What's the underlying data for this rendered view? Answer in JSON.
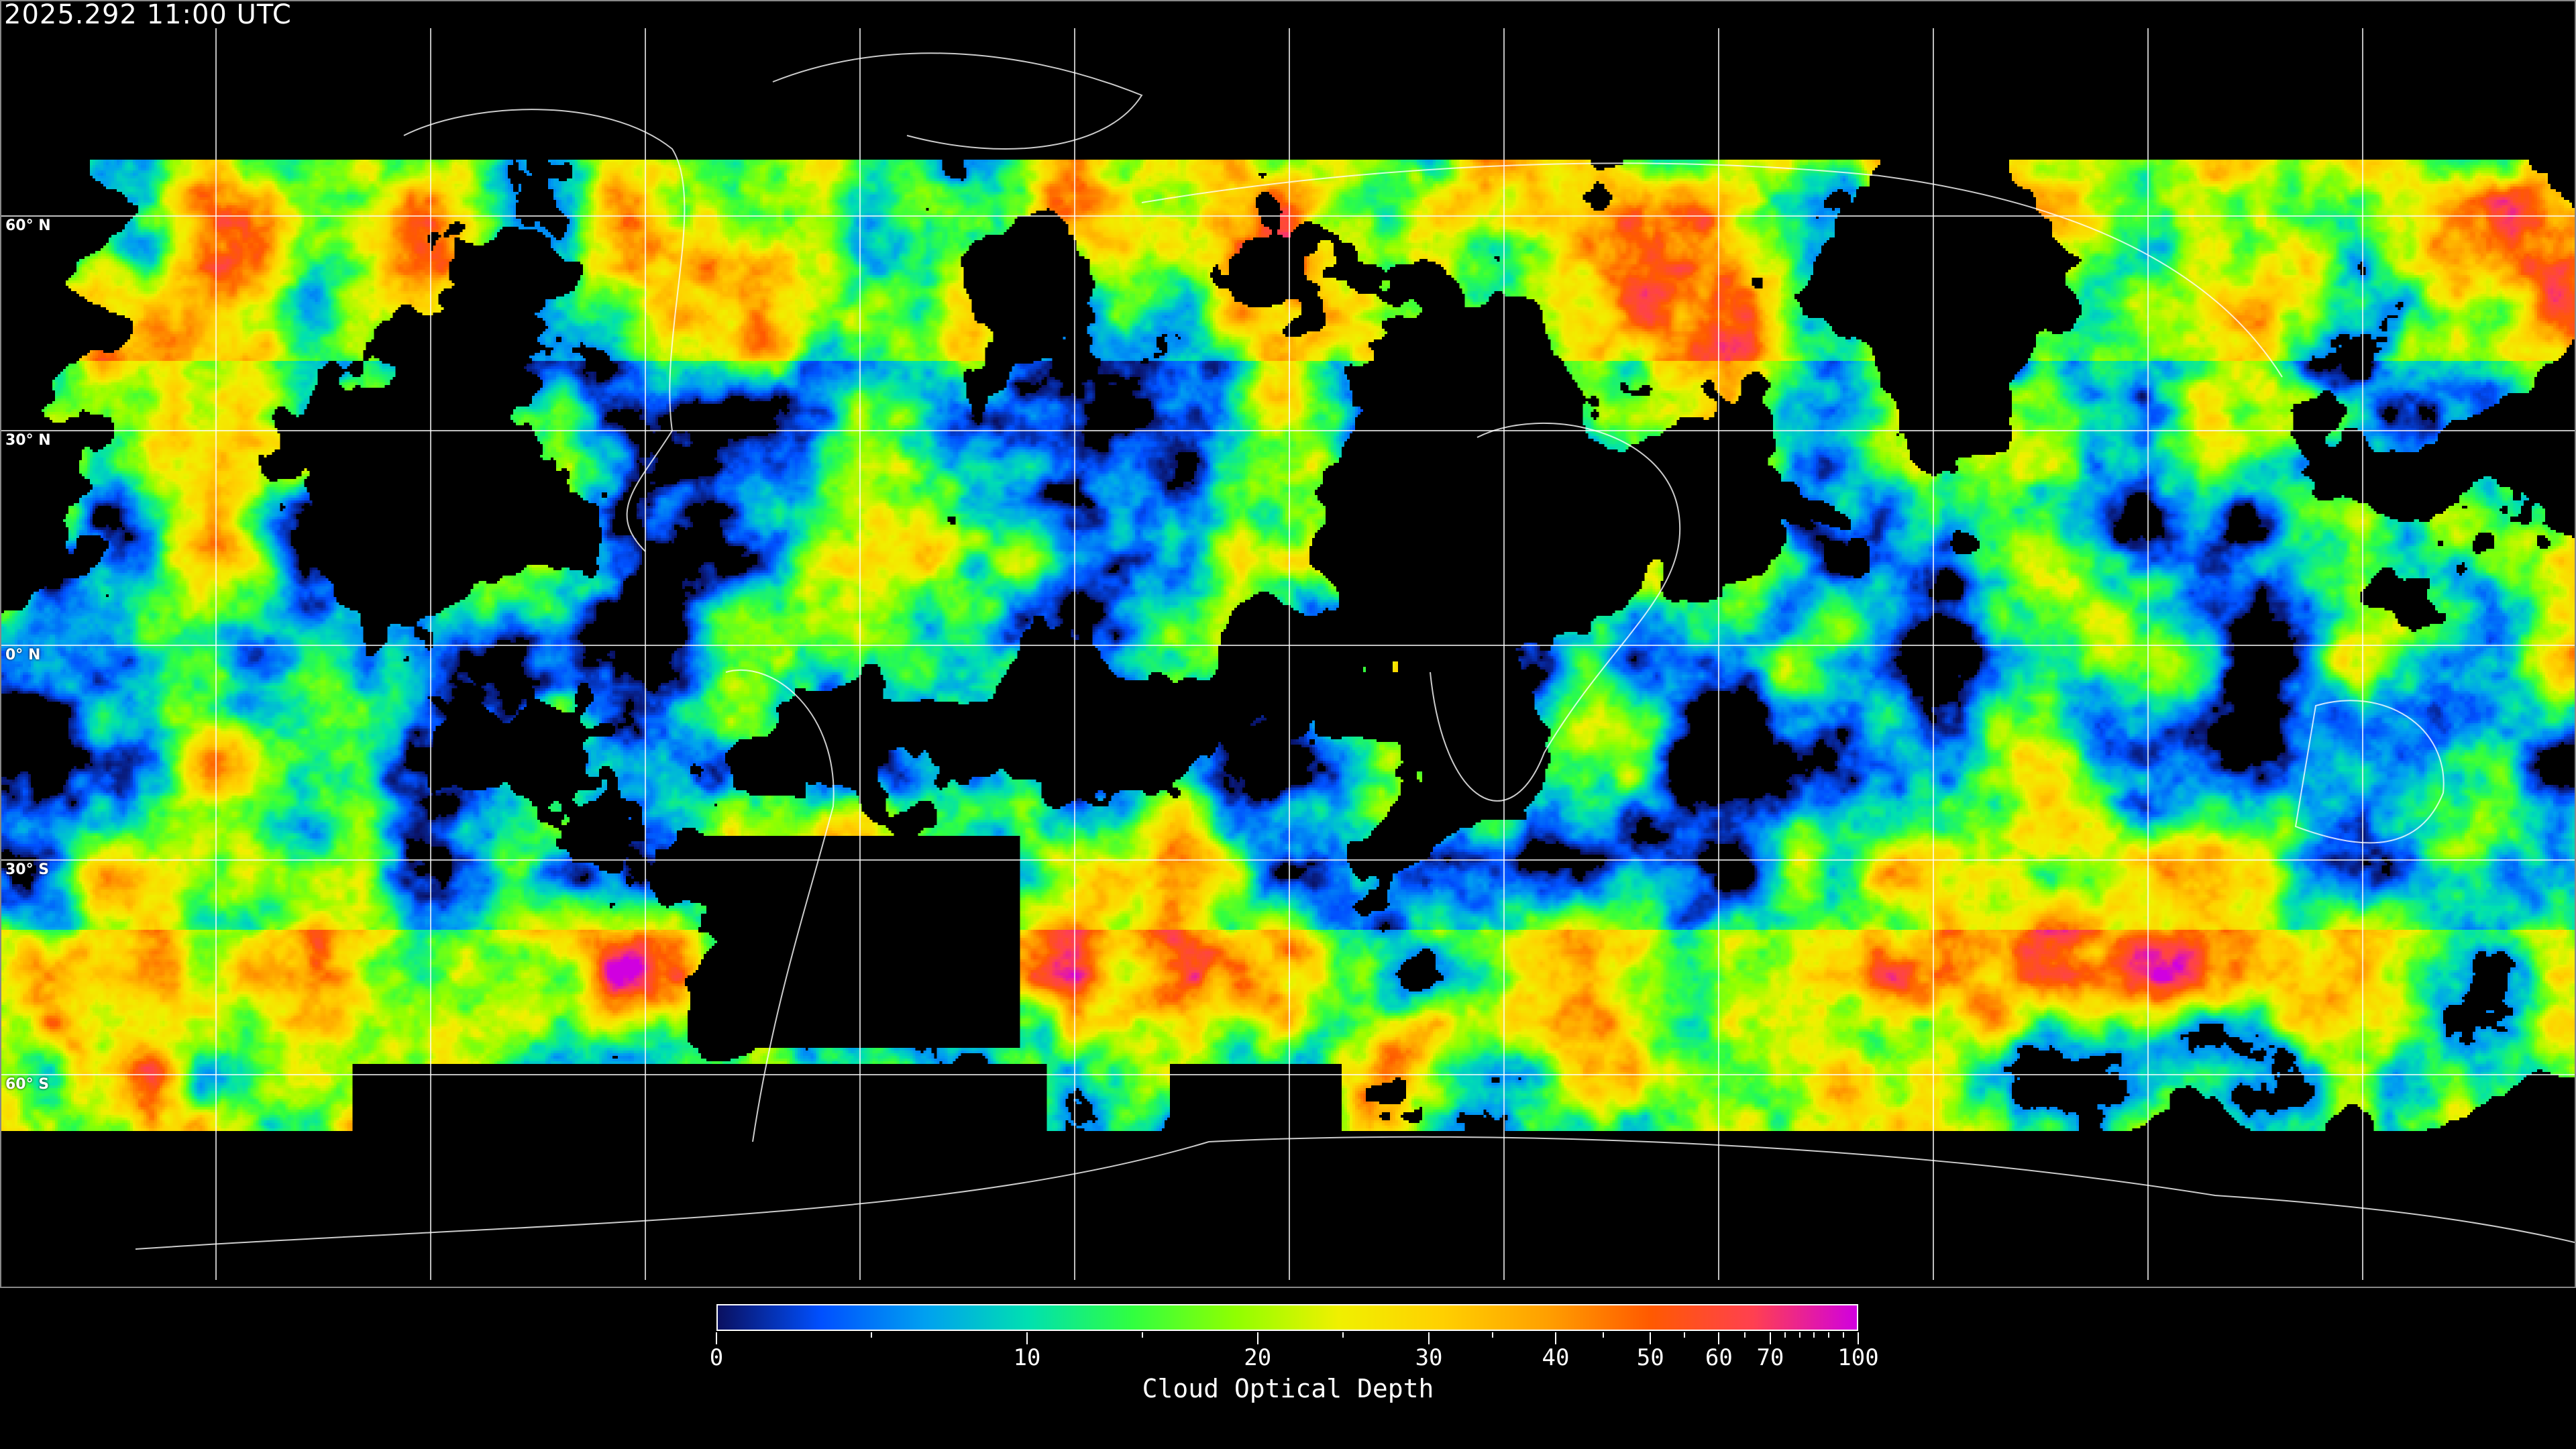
{
  "header": {
    "timestamp": "2025.292 11:00 UTC"
  },
  "map": {
    "projection": "equirectangular",
    "gridlines": true,
    "longitude_interval_deg": 30,
    "latitude_labels": [
      "60° N",
      "30° N",
      "0° N",
      "30° S",
      "60° S"
    ],
    "coastline_color": "#ffffff",
    "gridline_color": "#ffffff",
    "no_data_color": "#000000"
  },
  "colorbar": {
    "title": "Cloud Optical Depth",
    "range": [
      0,
      100
    ],
    "tick_labels": [
      "0",
      "10",
      "20",
      "30",
      "40",
      "50",
      "60",
      "70",
      "100"
    ],
    "colors": [
      "#0a1060",
      "#0050ff",
      "#00a0f0",
      "#00e0b0",
      "#30ff40",
      "#90ff00",
      "#f0f000",
      "#ffd000",
      "#ffa000",
      "#ff5a00",
      "#ff4050",
      "#d000e0"
    ]
  }
}
